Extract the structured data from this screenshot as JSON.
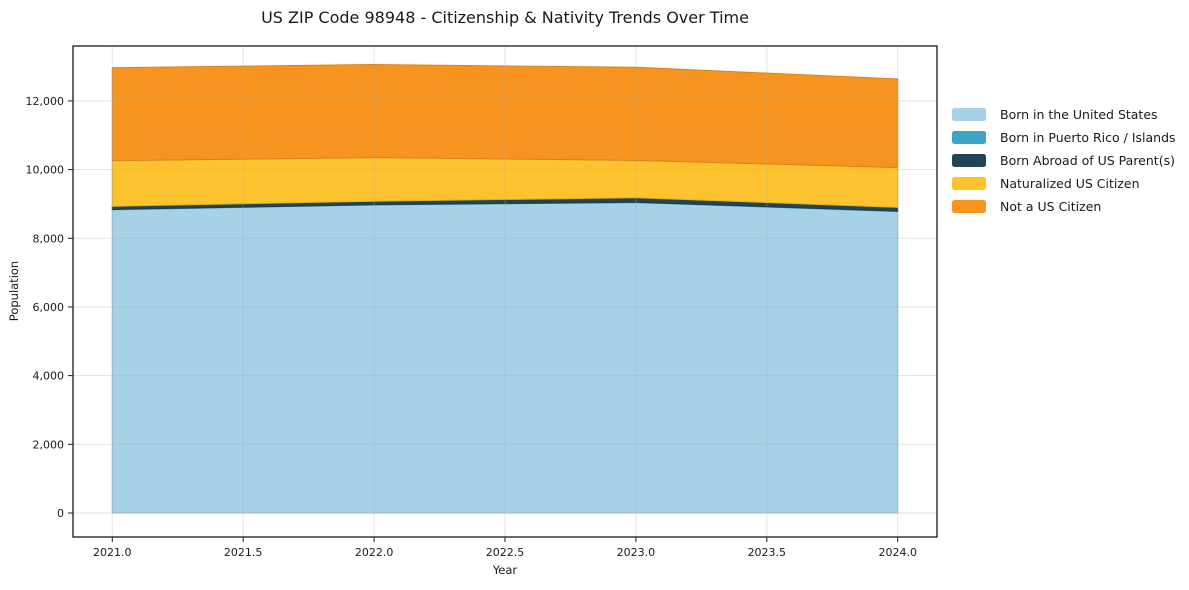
{
  "title": "US ZIP Code 98948 - Citizenship & Nativity Trends Over Time",
  "chart_data": {
    "type": "area",
    "stacked": true,
    "title": "US ZIP Code 98948 - Citizenship & Nativity Trends Over Time",
    "xlabel": "Year",
    "ylabel": "Population",
    "x": [
      2021,
      2022,
      2023,
      2024
    ],
    "series": [
      {
        "name": "Born in the United States",
        "color": "#a6d1e6",
        "values": [
          8830,
          8970,
          9040,
          8780
        ]
      },
      {
        "name": "Born in Puerto Rico / Islands",
        "color": "#3da4c6",
        "values": [
          10,
          10,
          10,
          10
        ]
      },
      {
        "name": "Born Abroad of US Parent(s)",
        "color": "#1f4557",
        "values": [
          90,
          100,
          130,
          110
        ]
      },
      {
        "name": "Naturalized US Citizen",
        "color": "#fdc32f",
        "values": [
          1330,
          1270,
          1090,
          1160
        ]
      },
      {
        "name": "Not a US Citizen",
        "color": "#f7941f",
        "values": [
          2710,
          2710,
          2710,
          2580
        ]
      }
    ],
    "xlim": [
      2020.85,
      2024.15
    ],
    "ylim": [
      -700,
      13600
    ],
    "x_ticks": {
      "values": [
        2021.0,
        2021.5,
        2022.0,
        2022.5,
        2023.0,
        2023.5,
        2024.0
      ],
      "labels": [
        "2021.0",
        "2021.5",
        "2022.0",
        "2022.5",
        "2023.0",
        "2023.5",
        "2024.0"
      ]
    },
    "y_ticks": {
      "values": [
        0,
        2000,
        4000,
        6000,
        8000,
        10000,
        12000
      ],
      "labels": [
        "0",
        "2,000",
        "4,000",
        "6,000",
        "8,000",
        "10,000",
        "12,000"
      ]
    },
    "grid": true,
    "legend_position": "right-outside"
  },
  "colors": {
    "grid": "#b0b0b0",
    "spine": "#1a1a1a",
    "background": "#ffffff"
  }
}
